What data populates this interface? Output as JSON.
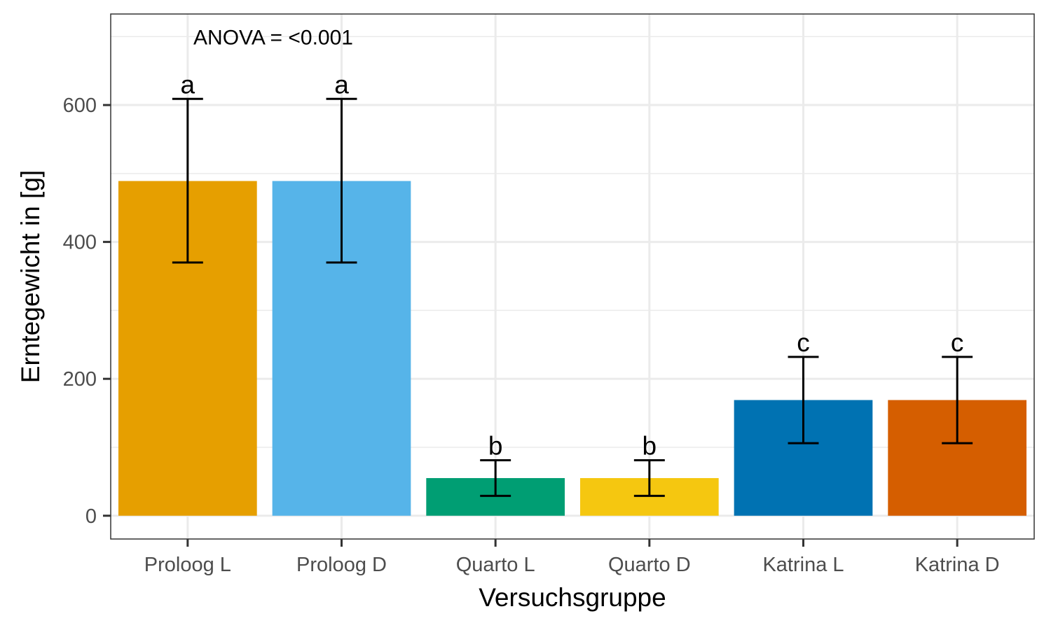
{
  "chart_data": {
    "type": "bar",
    "categories": [
      "Proloog L",
      "Proloog D",
      "Quarto L",
      "Quarto D",
      "Katrina L",
      "Katrina D"
    ],
    "values": [
      489,
      489,
      55,
      55,
      169,
      169
    ],
    "error_low": [
      370,
      370,
      29,
      29,
      106,
      106
    ],
    "error_high": [
      609,
      609,
      81,
      81,
      232,
      232
    ],
    "sig_letters": [
      "a",
      "a",
      "b",
      "b",
      "c",
      "c"
    ],
    "colors": [
      "#E69F00",
      "#56B4E9",
      "#009E73",
      "#F5C710",
      "#0072B2",
      "#D55E00"
    ],
    "annotation": "ANOVA = <0.001",
    "xlabel": "Versuchsgruppe",
    "ylabel": "Erntegewicht in [g]",
    "ylim": [
      -34,
      733
    ],
    "yticks": [
      0,
      200,
      400,
      600
    ],
    "y_minor_ticks": [
      100,
      300,
      500,
      700
    ],
    "grid": true,
    "legend": "none"
  }
}
